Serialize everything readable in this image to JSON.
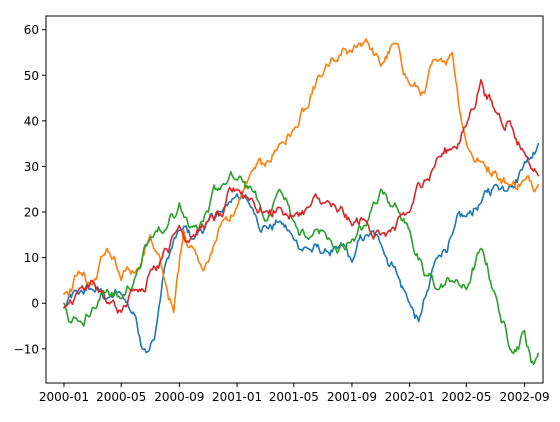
{
  "chart_data": {
    "type": "line",
    "title": "",
    "xlabel": "",
    "ylabel": "",
    "x_axis": {
      "type": "date",
      "range": [
        "1999-11-24",
        "2002-10-10"
      ],
      "ticks": [
        "2000-01-01",
        "2000-05-01",
        "2000-09-01",
        "2001-01-01",
        "2001-05-01",
        "2001-09-01",
        "2002-01-01",
        "2002-05-01",
        "2002-09-01"
      ],
      "tick_labels": [
        "2000-01",
        "2000-05",
        "2000-09",
        "2001-01",
        "2001-05",
        "2001-09",
        "2002-01",
        "2002-05",
        "2002-09"
      ]
    },
    "y_axis": {
      "range": [
        -17.5,
        63
      ],
      "ticks": [
        -10,
        0,
        10,
        20,
        30,
        40,
        50,
        60
      ],
      "tick_labels": [
        "−10",
        "0",
        "10",
        "20",
        "30",
        "40",
        "50",
        "60"
      ]
    },
    "grid": false,
    "legend": "none",
    "series": [
      {
        "color": "#1f77b4",
        "points": [
          [
            "2000-01-01",
            -1
          ],
          [
            "2000-02-01",
            2
          ],
          [
            "2000-03-01",
            3
          ],
          [
            "2000-04-01",
            1
          ],
          [
            "2000-05-01",
            2
          ],
          [
            "2000-06-01",
            -3
          ],
          [
            "2000-06-20",
            -10
          ],
          [
            "2000-07-10",
            -8
          ],
          [
            "2000-08-01",
            8
          ],
          [
            "2000-09-01",
            16
          ],
          [
            "2000-10-01",
            14
          ],
          [
            "2000-11-01",
            18
          ],
          [
            "2000-12-01",
            20
          ],
          [
            "2001-01-01",
            24
          ],
          [
            "2001-02-01",
            21
          ],
          [
            "2001-03-01",
            17
          ],
          [
            "2001-04-01",
            18
          ],
          [
            "2001-05-01",
            14
          ],
          [
            "2001-06-01",
            12
          ],
          [
            "2001-07-01",
            11
          ],
          [
            "2001-08-01",
            12
          ],
          [
            "2001-09-01",
            9
          ],
          [
            "2001-10-01",
            15
          ],
          [
            "2001-11-01",
            13
          ],
          [
            "2001-12-01",
            8
          ],
          [
            "2002-01-01",
            0
          ],
          [
            "2002-01-20",
            -4
          ],
          [
            "2002-02-10",
            3
          ],
          [
            "2002-03-01",
            10
          ],
          [
            "2002-04-01",
            15
          ],
          [
            "2002-05-01",
            19
          ],
          [
            "2002-06-01",
            22
          ],
          [
            "2002-07-01",
            26
          ],
          [
            "2002-08-01",
            26
          ],
          [
            "2002-09-01",
            31
          ],
          [
            "2002-09-30",
            35
          ]
        ]
      },
      {
        "color": "#ff7f0e",
        "points": [
          [
            "2000-01-01",
            2
          ],
          [
            "2000-02-01",
            7
          ],
          [
            "2000-03-01",
            4
          ],
          [
            "2000-04-01",
            12
          ],
          [
            "2000-05-01",
            5
          ],
          [
            "2000-06-01",
            7
          ],
          [
            "2000-07-01",
            15
          ],
          [
            "2000-08-01",
            5
          ],
          [
            "2000-08-20",
            -2
          ],
          [
            "2000-09-10",
            16
          ],
          [
            "2000-10-01",
            12
          ],
          [
            "2000-11-01",
            9
          ],
          [
            "2000-12-01",
            18
          ],
          [
            "2001-01-01",
            21
          ],
          [
            "2001-02-01",
            29
          ],
          [
            "2001-03-01",
            30
          ],
          [
            "2001-04-01",
            35
          ],
          [
            "2001-05-01",
            38
          ],
          [
            "2001-06-01",
            43
          ],
          [
            "2001-07-01",
            50
          ],
          [
            "2001-08-01",
            53
          ],
          [
            "2001-09-01",
            55
          ],
          [
            "2001-10-01",
            58
          ],
          [
            "2001-11-01",
            52
          ],
          [
            "2001-12-01",
            57
          ],
          [
            "2002-01-01",
            48
          ],
          [
            "2002-02-01",
            46
          ],
          [
            "2002-03-01",
            53
          ],
          [
            "2002-04-01",
            55
          ],
          [
            "2002-05-01",
            35
          ],
          [
            "2002-06-01",
            31
          ],
          [
            "2002-07-01",
            29
          ],
          [
            "2002-08-01",
            26
          ],
          [
            "2002-09-01",
            27
          ],
          [
            "2002-09-30",
            26
          ]
        ]
      },
      {
        "color": "#2ca02c",
        "points": [
          [
            "2000-01-01",
            0
          ],
          [
            "2000-02-01",
            -4
          ],
          [
            "2000-03-01",
            -1
          ],
          [
            "2000-04-01",
            3
          ],
          [
            "2000-05-01",
            1
          ],
          [
            "2000-06-01",
            6
          ],
          [
            "2000-07-01",
            14
          ],
          [
            "2000-08-01",
            16
          ],
          [
            "2000-09-01",
            22
          ],
          [
            "2000-10-01",
            17
          ],
          [
            "2000-11-01",
            20
          ],
          [
            "2000-12-01",
            26
          ],
          [
            "2001-01-01",
            27
          ],
          [
            "2001-02-01",
            25
          ],
          [
            "2001-03-01",
            18
          ],
          [
            "2001-04-01",
            25
          ],
          [
            "2001-05-01",
            18
          ],
          [
            "2001-06-01",
            14
          ],
          [
            "2001-07-01",
            16
          ],
          [
            "2001-08-01",
            11
          ],
          [
            "2001-09-01",
            14
          ],
          [
            "2001-10-01",
            17
          ],
          [
            "2001-11-01",
            25
          ],
          [
            "2001-12-01",
            22
          ],
          [
            "2002-01-01",
            16
          ],
          [
            "2002-02-01",
            6
          ],
          [
            "2002-03-01",
            3
          ],
          [
            "2002-04-01",
            5
          ],
          [
            "2002-05-01",
            3
          ],
          [
            "2002-06-01",
            12
          ],
          [
            "2002-07-01",
            2
          ],
          [
            "2002-08-01",
            -10
          ],
          [
            "2002-09-01",
            -6
          ],
          [
            "2002-09-15",
            -13
          ],
          [
            "2002-09-30",
            -11
          ]
        ]
      },
      {
        "color": "#d62728",
        "points": [
          [
            "2000-01-01",
            -1
          ],
          [
            "2000-02-01",
            3
          ],
          [
            "2000-03-01",
            5
          ],
          [
            "2000-04-01",
            0
          ],
          [
            "2000-05-01",
            -2
          ],
          [
            "2000-06-01",
            3
          ],
          [
            "2000-07-01",
            7
          ],
          [
            "2000-08-01",
            12
          ],
          [
            "2000-09-01",
            17
          ],
          [
            "2000-10-01",
            15
          ],
          [
            "2000-11-01",
            18
          ],
          [
            "2000-12-01",
            19
          ],
          [
            "2001-01-01",
            25
          ],
          [
            "2001-02-01",
            23
          ],
          [
            "2001-03-01",
            20
          ],
          [
            "2001-04-01",
            21
          ],
          [
            "2001-05-01",
            19
          ],
          [
            "2001-06-01",
            21
          ],
          [
            "2001-07-01",
            22
          ],
          [
            "2001-08-01",
            20
          ],
          [
            "2001-09-01",
            17
          ],
          [
            "2001-10-01",
            18
          ],
          [
            "2001-11-01",
            15
          ],
          [
            "2001-12-01",
            16
          ],
          [
            "2002-01-01",
            20
          ],
          [
            "2002-02-01",
            27
          ],
          [
            "2002-03-01",
            32
          ],
          [
            "2002-04-01",
            34
          ],
          [
            "2002-05-01",
            39
          ],
          [
            "2002-06-01",
            49
          ],
          [
            "2002-07-01",
            42
          ],
          [
            "2002-08-01",
            40
          ],
          [
            "2002-09-01",
            33
          ],
          [
            "2002-09-30",
            28
          ]
        ]
      }
    ]
  }
}
